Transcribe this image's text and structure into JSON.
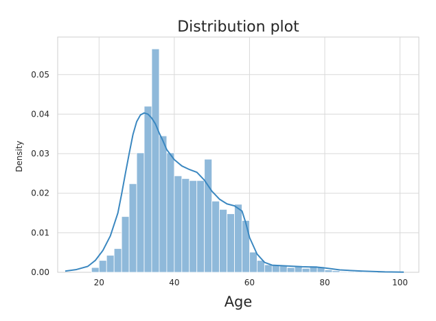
{
  "chart_data": {
    "type": "histogram",
    "title": "Distribution plot",
    "xlabel": "Age",
    "ylabel": "Density",
    "xlim": [
      9,
      105
    ],
    "ylim": [
      0,
      0.0595
    ],
    "xticks": [
      20,
      40,
      60,
      80,
      100
    ],
    "yticks": [
      0.0,
      0.01,
      0.02,
      0.03,
      0.04,
      0.05
    ],
    "ytick_labels": [
      "0.00",
      "0.01",
      "0.02",
      "0.03",
      "0.04",
      "0.05"
    ],
    "grid": true,
    "bar_color": "#8fb9da",
    "kde_color": "#3a87c0",
    "bin_width": 2,
    "bins": [
      {
        "x0": 18,
        "value": 0.0012
      },
      {
        "x0": 20,
        "value": 0.003
      },
      {
        "x0": 22,
        "value": 0.0043
      },
      {
        "x0": 24,
        "value": 0.006
      },
      {
        "x0": 26,
        "value": 0.0141
      },
      {
        "x0": 28,
        "value": 0.0224
      },
      {
        "x0": 30,
        "value": 0.0302
      },
      {
        "x0": 32,
        "value": 0.042
      },
      {
        "x0": 34,
        "value": 0.0565
      },
      {
        "x0": 36,
        "value": 0.0345
      },
      {
        "x0": 38,
        "value": 0.0302
      },
      {
        "x0": 40,
        "value": 0.0244
      },
      {
        "x0": 42,
        "value": 0.0237
      },
      {
        "x0": 44,
        "value": 0.0232
      },
      {
        "x0": 46,
        "value": 0.0232
      },
      {
        "x0": 48,
        "value": 0.0286
      },
      {
        "x0": 50,
        "value": 0.018
      },
      {
        "x0": 52,
        "value": 0.0159
      },
      {
        "x0": 54,
        "value": 0.0148
      },
      {
        "x0": 56,
        "value": 0.0172
      },
      {
        "x0": 58,
        "value": 0.0131
      },
      {
        "x0": 60,
        "value": 0.0051
      },
      {
        "x0": 62,
        "value": 0.003
      },
      {
        "x0": 64,
        "value": 0.0019
      },
      {
        "x0": 66,
        "value": 0.0018
      },
      {
        "x0": 68,
        "value": 0.0018
      },
      {
        "x0": 70,
        "value": 0.0012
      },
      {
        "x0": 72,
        "value": 0.0016
      },
      {
        "x0": 74,
        "value": 0.001
      },
      {
        "x0": 76,
        "value": 0.0016
      },
      {
        "x0": 78,
        "value": 0.0014
      },
      {
        "x0": 80,
        "value": 0.0006
      },
      {
        "x0": 82,
        "value": 0.0004
      },
      {
        "x0": 84,
        "value": 0.0002
      },
      {
        "x0": 86,
        "value": 0.0002
      },
      {
        "x0": 88,
        "value": 0.0002
      },
      {
        "x0": 90,
        "value": 0.0001
      },
      {
        "x0": 92,
        "value": 0.0001
      }
    ],
    "kde": {
      "x": [
        11,
        14,
        17,
        19,
        21,
        23,
        25,
        26,
        27,
        28,
        29,
        30,
        31,
        32,
        33,
        34,
        35,
        36,
        37,
        38,
        40,
        42,
        44,
        46,
        48,
        50,
        52,
        54,
        56,
        58,
        59,
        60,
        62,
        64,
        66,
        70,
        74,
        78,
        80,
        84,
        90,
        96,
        101
      ],
      "y": [
        0.0003,
        0.0007,
        0.0015,
        0.003,
        0.0055,
        0.0092,
        0.015,
        0.0198,
        0.025,
        0.03,
        0.0348,
        0.0381,
        0.0398,
        0.0403,
        0.04,
        0.039,
        0.0375,
        0.0352,
        0.0332,
        0.031,
        0.0285,
        0.0269,
        0.026,
        0.0253,
        0.0233,
        0.0205,
        0.0185,
        0.0173,
        0.0168,
        0.0155,
        0.0125,
        0.0088,
        0.0046,
        0.0025,
        0.0018,
        0.0016,
        0.0014,
        0.0013,
        0.0011,
        0.0006,
        0.0003,
        0.0001,
        4e-05
      ]
    }
  }
}
